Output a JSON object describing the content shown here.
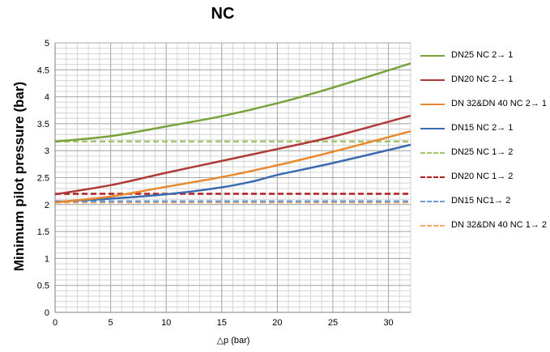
{
  "chart_data": {
    "type": "line",
    "title": "NC",
    "title_cut": "",
    "xlabel": "△p (bar)",
    "ylabel": "Minimum pilot pressure (bar)",
    "xlim": [
      0,
      32
    ],
    "ylim": [
      0,
      5
    ],
    "x_ticks": [
      "0",
      "5",
      "10",
      "15",
      "20",
      "25",
      "30"
    ],
    "y_ticks": [
      "0",
      "0.5",
      "1",
      "1.5",
      "2",
      "2.5",
      "3",
      "3.5",
      "4",
      "4.5",
      "5"
    ],
    "grid": true,
    "legend_position": "right",
    "series": [
      {
        "name": "DN25 NC 2→ 1",
        "color": "#77a33a",
        "dash": false,
        "x": [
          0,
          5,
          10,
          15,
          20,
          25,
          32
        ],
        "y": [
          3.17,
          3.27,
          3.45,
          3.64,
          3.88,
          4.17,
          4.62
        ]
      },
      {
        "name": "DN20 NC 2→ 1",
        "color": "#b03a37",
        "dash": false,
        "x": [
          0,
          5,
          10,
          15,
          20,
          25,
          32
        ],
        "y": [
          2.19,
          2.36,
          2.59,
          2.81,
          3.03,
          3.26,
          3.65
        ]
      },
      {
        "name": "DN 32&DN 40 NC 2→ 1",
        "color": "#e9882e",
        "dash": false,
        "x": [
          0,
          5,
          10,
          15,
          20,
          25,
          32
        ],
        "y": [
          2.04,
          2.15,
          2.33,
          2.51,
          2.73,
          2.98,
          3.36
        ]
      },
      {
        "name": "DN15 NC 2→ 1",
        "color": "#3a6ab0",
        "dash": false,
        "x": [
          0,
          5,
          10,
          15,
          18,
          20,
          25,
          32
        ],
        "y": [
          2.05,
          2.11,
          2.19,
          2.32,
          2.44,
          2.55,
          2.77,
          3.11
        ]
      },
      {
        "name": "DN25 NC 1→ 2",
        "color": "#a5c56b",
        "dash": true,
        "x": [
          0,
          32
        ],
        "y": [
          3.17,
          3.17
        ]
      },
      {
        "name": "DN20 NC 1→ 2",
        "color": "#b31d1d",
        "dash": true,
        "x": [
          0,
          32
        ],
        "y": [
          2.2,
          2.2
        ]
      },
      {
        "name": "DN15 NC1→ 2",
        "color": "#6d9bd6",
        "dash": true,
        "x": [
          0,
          32
        ],
        "y": [
          2.06,
          2.06
        ]
      },
      {
        "name": "DN 32&DN 40 NC 1→ 2",
        "color": "#f2a460",
        "dash": true,
        "x": [
          0,
          32
        ],
        "y": [
          2.04,
          2.04
        ]
      }
    ]
  }
}
